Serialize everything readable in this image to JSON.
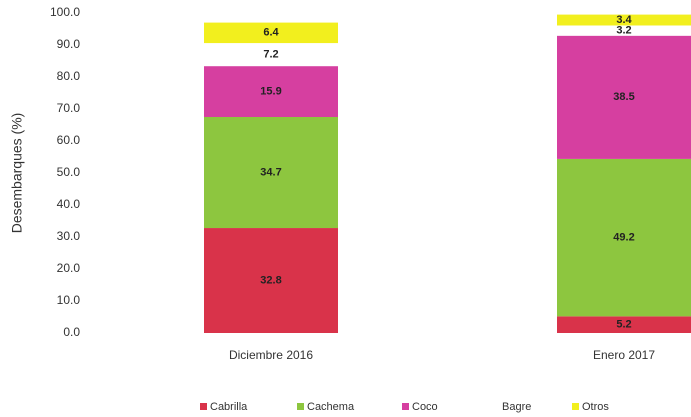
{
  "chart_data": {
    "type": "stacked_bar",
    "y_label": "Desembarques (%)",
    "categories": [
      "Diciembre 2016",
      "Enero 2017"
    ],
    "series": [
      {
        "name": "Cabrilla",
        "color": "#d9334a",
        "values": [
          32.8,
          5.2
        ]
      },
      {
        "name": "Cachema",
        "color": "#8dc63f",
        "values": [
          34.7,
          49.2
        ]
      },
      {
        "name": "Coco",
        "color": "#d63fa0",
        "values": [
          15.9,
          38.5
        ]
      },
      {
        "name": "Bagre",
        "color": "#ffffff",
        "values": [
          7.2,
          3.2
        ]
      },
      {
        "name": "Otros",
        "color": "#f2ef1e",
        "values": [
          6.4,
          3.4
        ]
      }
    ],
    "ylim": [
      0,
      100
    ],
    "yticks": [
      {
        "value": 0,
        "label": "0.0"
      },
      {
        "value": 10,
        "label": "10.0"
      },
      {
        "value": 20,
        "label": "20.0"
      },
      {
        "value": 30,
        "label": "30.0"
      },
      {
        "value": 40,
        "label": "40.0"
      },
      {
        "value": 50,
        "label": "50.0"
      },
      {
        "value": 60,
        "label": "60.0"
      },
      {
        "value": 70,
        "label": "70.0"
      },
      {
        "value": 80,
        "label": "80.0"
      },
      {
        "value": 90,
        "label": "90.0"
      },
      {
        "value": 100,
        "label": "100.0"
      }
    ],
    "legend": "bottom"
  }
}
